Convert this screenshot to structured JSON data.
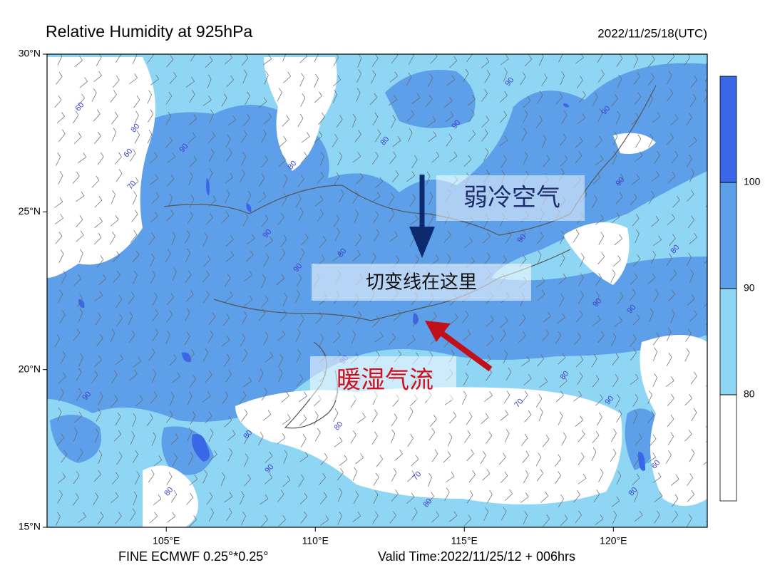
{
  "title": "Relative Humidity at 925hPa",
  "timestamp": "2022/11/25/18(UTC)",
  "footer_left": "FINE ECMWF 0.25°*0.25°",
  "footer_right": "Valid Time:2022/11/25/12 + 006hrs",
  "map": {
    "lon_range": [
      101,
      123.15
    ],
    "lat_range": [
      15,
      30
    ],
    "lon_ticks": [
      {
        "value": 105,
        "label": "105°E"
      },
      {
        "value": 110,
        "label": "110°E"
      },
      {
        "value": 115,
        "label": "115°E"
      },
      {
        "value": 120,
        "label": "120°E"
      }
    ],
    "lat_ticks": [
      {
        "value": 15,
        "label": "15°N"
      },
      {
        "value": 20,
        "label": "20°N"
      },
      {
        "value": 25,
        "label": "25°N"
      },
      {
        "value": 30,
        "label": "30°N"
      }
    ]
  },
  "colorbar": {
    "range": [
      70,
      110
    ],
    "levels": [
      80,
      90,
      100
    ],
    "colors": [
      "#ffffff",
      "#8fd6f5",
      "#5d9fe8",
      "#3a67e8"
    ]
  },
  "annotations": {
    "cold_air": "弱冷空气",
    "shear_line": "切变线在这里",
    "warm_flow": "暖湿气流"
  },
  "contour_labels": [
    "60",
    "80",
    "60",
    "70",
    "90",
    "80",
    "90",
    "80",
    "90",
    "90",
    "90",
    "90",
    "90",
    "80",
    "90",
    "90",
    "80",
    "90",
    "80",
    "90",
    "70",
    "80",
    "90",
    "70",
    "80",
    "90",
    "80",
    "60",
    "80",
    "80",
    "90"
  ]
}
